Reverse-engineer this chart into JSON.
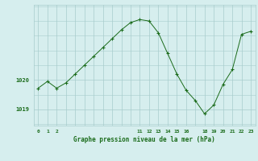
{
  "x": [
    0,
    1,
    2,
    3,
    4,
    5,
    6,
    7,
    8,
    9,
    10,
    11,
    12,
    13,
    14,
    15,
    16,
    17,
    18,
    19,
    20,
    21,
    22,
    23
  ],
  "y": [
    1019.72,
    1019.95,
    1019.72,
    1019.9,
    1020.2,
    1020.5,
    1020.8,
    1021.1,
    1021.4,
    1021.7,
    1021.95,
    1022.05,
    1022.0,
    1021.6,
    1020.9,
    1020.2,
    1019.65,
    1019.3,
    1018.85,
    1019.15,
    1019.85,
    1020.35,
    1021.55,
    1021.65
  ],
  "line_color": "#1a6b1a",
  "marker": "+",
  "marker_size": 3,
  "marker_linewidth": 0.8,
  "line_width": 0.7,
  "bg_color": "#d6eeee",
  "grid_color": "#a8cccc",
  "xlabel": "Graphe pression niveau de la mer (hPa)",
  "xlabel_color": "#1a6b1a",
  "tick_color": "#1a6b1a",
  "tick_labels": [
    "0",
    "1",
    "2",
    "",
    "",
    "",
    "",
    "",
    "",
    "",
    "",
    "11",
    "12",
    "13",
    "14",
    "15",
    "16",
    "",
    "18",
    "19",
    "20",
    "21",
    "22",
    "23"
  ],
  "ytick_positions": [
    1019.0,
    1020.0
  ],
  "ylim": [
    1018.45,
    1022.55
  ],
  "xlim": [
    -0.5,
    23.5
  ],
  "title_color": "#1a6b1a"
}
